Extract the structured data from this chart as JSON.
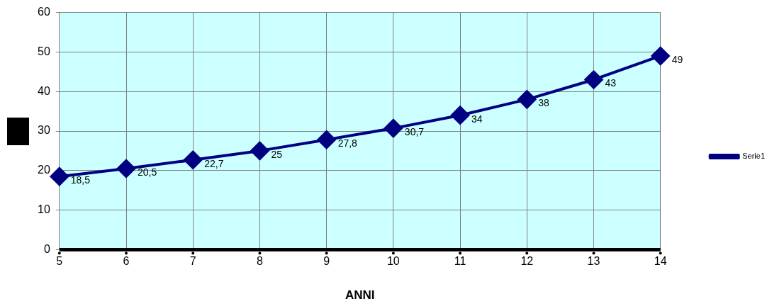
{
  "chart_data": {
    "type": "line",
    "xlabel": "ANNI",
    "x": [
      5,
      6,
      7,
      8,
      9,
      10,
      11,
      12,
      13,
      14
    ],
    "series": [
      {
        "name": "Serie1",
        "color": "#000080",
        "values": [
          18.5,
          20.5,
          22.7,
          25,
          27.8,
          30.7,
          34,
          38,
          43,
          49
        ],
        "value_labels": [
          "18,5",
          "20,5",
          "22,7",
          "25",
          "27,8",
          "30,7",
          "34",
          "38",
          "43",
          "49"
        ]
      }
    ],
    "xlim": [
      5,
      14
    ],
    "xticks": [
      5,
      6,
      7,
      8,
      9,
      10,
      11,
      12,
      13,
      14
    ],
    "ylim": [
      0,
      60
    ],
    "yticks": [
      0,
      10,
      20,
      30,
      40,
      50,
      60
    ],
    "grid": true,
    "legend": "right",
    "marker": "diamond",
    "line_style": "solid"
  }
}
